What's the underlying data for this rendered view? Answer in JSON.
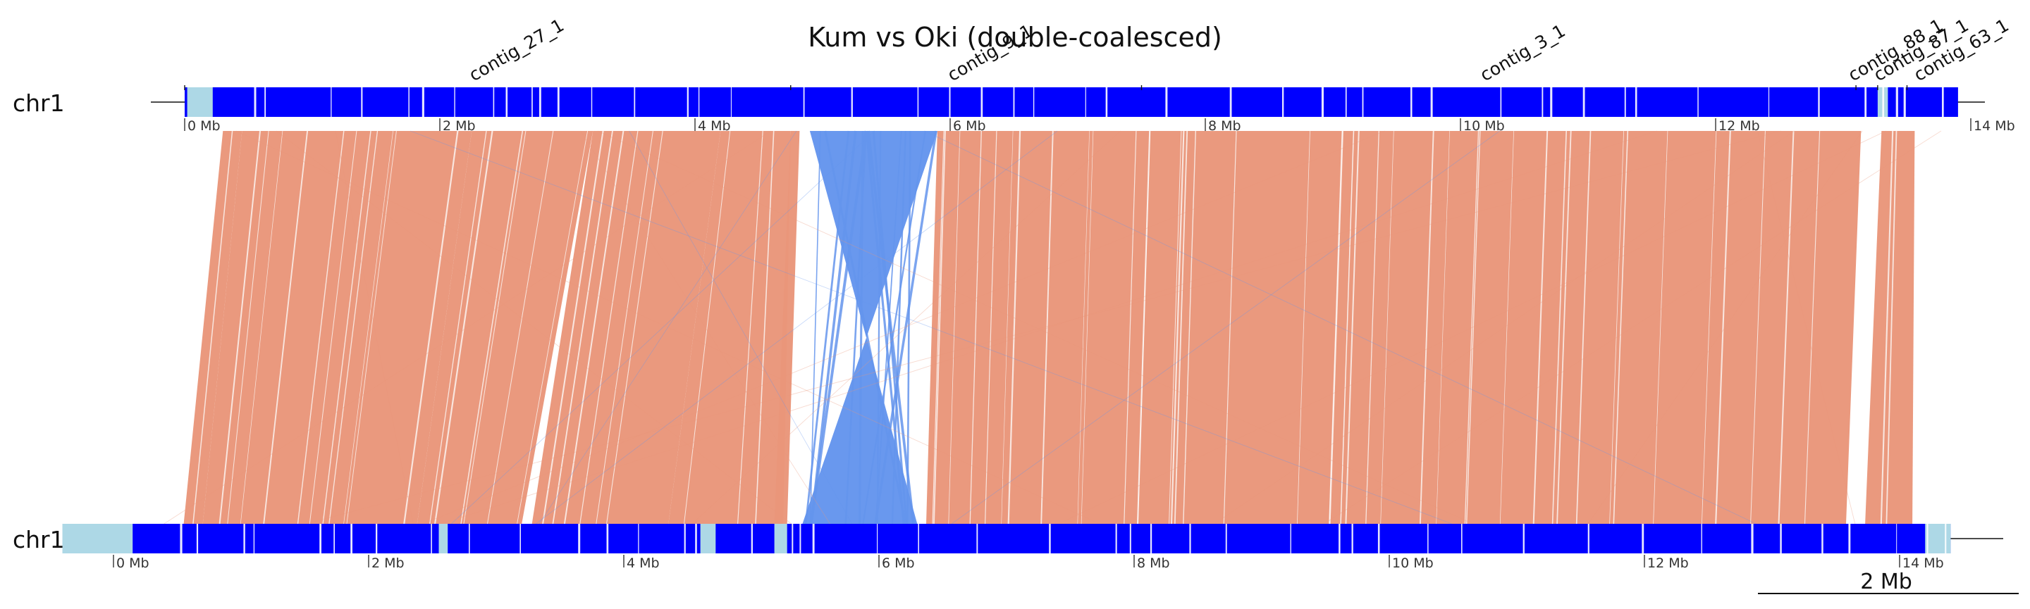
{
  "title": "Kum vs Oki (double-coalesced)",
  "chart_data": {
    "type": "synteny",
    "unit": "Mb",
    "top_track": {
      "chromosome": "chr1",
      "length_mb": 13.9,
      "ticks": [
        {
          "mb": 0,
          "label": "0 Mb"
        },
        {
          "mb": 2,
          "label": "2 Mb"
        },
        {
          "mb": 4,
          "label": "4 Mb"
        },
        {
          "mb": 6,
          "label": "6 Mb"
        },
        {
          "mb": 8,
          "label": "8 Mb"
        },
        {
          "mb": 10,
          "label": "10 Mb"
        },
        {
          "mb": 12,
          "label": "12 Mb"
        },
        {
          "mb": 14,
          "label": "14 Mb"
        }
      ],
      "contigs": [
        {
          "name": "contig_27_1",
          "start_mb": 0.0,
          "end_mb": 4.75
        },
        {
          "name": "contig_9_1",
          "start_mb": 4.75,
          "end_mb": 7.5
        },
        {
          "name": "contig_3_1",
          "start_mb": 7.5,
          "end_mb": 13.1
        },
        {
          "name": "contig_88_1",
          "start_mb": 13.1,
          "end_mb": 13.27
        },
        {
          "name": "contig_87_1",
          "start_mb": 13.27,
          "end_mb": 13.5
        },
        {
          "name": "contig_63_1",
          "start_mb": 13.5,
          "end_mb": 13.9
        }
      ]
    },
    "bottom_track": {
      "chromosome": "chr1",
      "length_mb": 14.4,
      "ticks": [
        {
          "mb": 0,
          "label": "0 Mb"
        },
        {
          "mb": 2,
          "label": "2 Mb"
        },
        {
          "mb": 4,
          "label": "4 Mb"
        },
        {
          "mb": 6,
          "label": "6 Mb"
        },
        {
          "mb": 8,
          "label": "8 Mb"
        },
        {
          "mb": 10,
          "label": "10 Mb"
        },
        {
          "mb": 12,
          "label": "12 Mb"
        },
        {
          "mb": 14,
          "label": "14 Mb"
        }
      ]
    },
    "syntenic_blocks": [
      {
        "top": [
          0.3,
          0.45
        ],
        "bottom": [
          0.55,
          0.7
        ],
        "orientation": "forward"
      },
      {
        "top": [
          0.45,
          2.25
        ],
        "bottom": [
          0.7,
          2.38
        ],
        "orientation": "forward"
      },
      {
        "top": [
          2.25,
          3.2
        ],
        "bottom": [
          2.38,
          3.2
        ],
        "orientation": "forward"
      },
      {
        "top": [
          3.2,
          4.2
        ],
        "bottom": [
          3.28,
          4.35
        ],
        "orientation": "forward"
      },
      {
        "top": [
          4.2,
          4.75
        ],
        "bottom": [
          4.35,
          5.25
        ],
        "orientation": "forward"
      },
      {
        "top": [
          4.75,
          4.82
        ],
        "bottom": [
          5.18,
          5.28
        ],
        "orientation": "forward"
      },
      {
        "top": [
          4.9,
          5.9
        ],
        "bottom": [
          5.4,
          6.3
        ],
        "orientation": "inverted"
      },
      {
        "top": [
          5.9,
          13.14
        ],
        "bottom": [
          6.37,
          13.58
        ],
        "orientation": "forward"
      },
      {
        "top": [
          13.3,
          13.56
        ],
        "bottom": [
          13.73,
          14.1
        ],
        "orientation": "forward"
      }
    ],
    "colors": {
      "forward": "#e9967a",
      "inverted": "#6495ed",
      "track": "#0000ff",
      "track_light": "#add8e6"
    },
    "scale_bar": {
      "length_mb": 2,
      "label": "2 Mb"
    }
  }
}
